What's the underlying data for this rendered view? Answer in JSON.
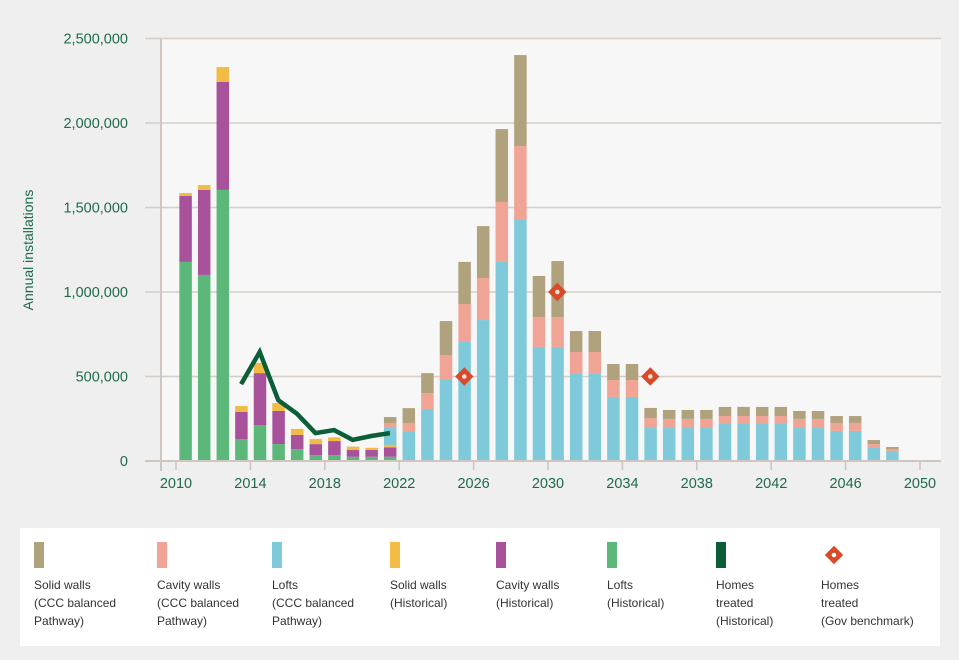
{
  "chart_data": {
    "type": "bar",
    "stacked": true,
    "title": "",
    "xlabel": "",
    "ylabel": "Annual installations",
    "ylim": [
      0,
      2500000
    ],
    "xlim": [
      2010,
      2050
    ],
    "yticks": [
      0,
      500000,
      1000000,
      1500000,
      2000000,
      2500000
    ],
    "ytick_labels": [
      "0",
      "500,000",
      "1,000,000",
      "1,500,000",
      "2,000,000",
      "2,500,000"
    ],
    "xticks": [
      2010,
      2014,
      2018,
      2022,
      2026,
      2030,
      2034,
      2038,
      2042,
      2046,
      2050
    ],
    "xtick_labels": [
      "2010",
      "2014",
      "2018",
      "2022",
      "2026",
      "2030",
      "2034",
      "2038",
      "2042",
      "2046",
      "2050"
    ],
    "grid": true,
    "legend_position": "bottom",
    "historical_years": [
      2010,
      2011,
      2012,
      2013,
      2014,
      2015,
      2016,
      2017,
      2018,
      2019,
      2020,
      2021
    ],
    "historical_series": [
      {
        "name": "Lofts (Historical)",
        "color": "#5cb87a",
        "values": [
          1178000,
          1101000,
          1604000,
          130000,
          213000,
          100000,
          70000,
          35000,
          35000,
          25000,
          25000,
          25000
        ]
      },
      {
        "name": "Cavity walls (Historical)",
        "color": "#a9529c",
        "values": [
          390000,
          503000,
          639000,
          160000,
          307000,
          196000,
          85000,
          65000,
          83000,
          40000,
          40000,
          55000
        ]
      },
      {
        "name": "Solid walls (Historical)",
        "color": "#f2bb44",
        "values": [
          18000,
          29000,
          88000,
          35000,
          60000,
          47000,
          35000,
          30000,
          22000,
          20000,
          13000,
          15000
        ]
      }
    ],
    "pathway_years": [
      2021,
      2022,
      2023,
      2024,
      2025,
      2026,
      2027,
      2028,
      2029,
      2030,
      2031,
      2032,
      2033,
      2034,
      2035,
      2036,
      2037,
      2038,
      2039,
      2040,
      2041,
      2042,
      2043,
      2044,
      2045,
      2046,
      2047,
      2048
    ],
    "pathway_series": [
      {
        "name": "Lofts (CCC balanced Pathway)",
        "color": "#7ecadb",
        "values": [
          100000,
          175000,
          308000,
          485000,
          704000,
          834000,
          1178000,
          1426000,
          675000,
          675000,
          515000,
          515000,
          379000,
          379000,
          195000,
          195000,
          195000,
          195000,
          219000,
          219000,
          219000,
          219000,
          195000,
          195000,
          178000,
          178000,
          77000,
          59000
        ]
      },
      {
        "name": "Cavity walls (CCC balanced Pathway)",
        "color": "#f0a496",
        "values": [
          30000,
          50000,
          94000,
          142000,
          225000,
          249000,
          355000,
          438000,
          177000,
          177000,
          130000,
          130000,
          100000,
          100000,
          59000,
          54000,
          54000,
          54000,
          47000,
          47000,
          47000,
          47000,
          54000,
          54000,
          47000,
          47000,
          23000,
          12000
        ]
      },
      {
        "name": "Solid walls (CCC balanced Pathway)",
        "color": "#b0a27c",
        "values": [
          35000,
          88000,
          118000,
          201000,
          249000,
          307000,
          431000,
          538000,
          243000,
          331000,
          124000,
          124000,
          95000,
          95000,
          60000,
          53000,
          53000,
          53000,
          54000,
          54000,
          54000,
          54000,
          47000,
          47000,
          41000,
          41000,
          24000,
          12000
        ]
      }
    ],
    "line_series": {
      "name": "Homes treated (Historical)",
      "color": "#0b5e38",
      "x": [
        2013,
        2014,
        2015,
        2016,
        2017,
        2018,
        2019,
        2020,
        2021
      ],
      "values": [
        455000,
        645000,
        360000,
        280000,
        165000,
        183000,
        125000,
        148000,
        165000
      ]
    },
    "marker_series": {
      "name": "Homes treated (Gov benchmark)",
      "color": "#d9492a",
      "x": [
        2025,
        2030,
        2035
      ],
      "values": [
        500000,
        1000000,
        500000
      ]
    }
  },
  "legend": {
    "items": [
      {
        "label": "Solid walls\n(CCC balanced\nPathway)",
        "color": "#b0a27c",
        "kind": "bar"
      },
      {
        "label": "Cavity walls\n(CCC balanced\nPathway)",
        "color": "#f0a496",
        "kind": "bar"
      },
      {
        "label": "Lofts\n(CCC balanced\nPathway)",
        "color": "#7ecadb",
        "kind": "bar"
      },
      {
        "label": "Solid walls\n(Historical)",
        "color": "#f2bb44",
        "kind": "bar"
      },
      {
        "label": "Cavity walls\n(Historical)",
        "color": "#a9529c",
        "kind": "bar"
      },
      {
        "label": "Lofts\n(Historical)",
        "color": "#5cb87a",
        "kind": "bar"
      },
      {
        "label": "Homes\ntreated\n(Historical)",
        "color": "#0b5e38",
        "kind": "bar"
      },
      {
        "label": "Homes\ntreated\n(Gov benchmark)",
        "color": "#d9492a",
        "kind": "diamond"
      }
    ]
  }
}
